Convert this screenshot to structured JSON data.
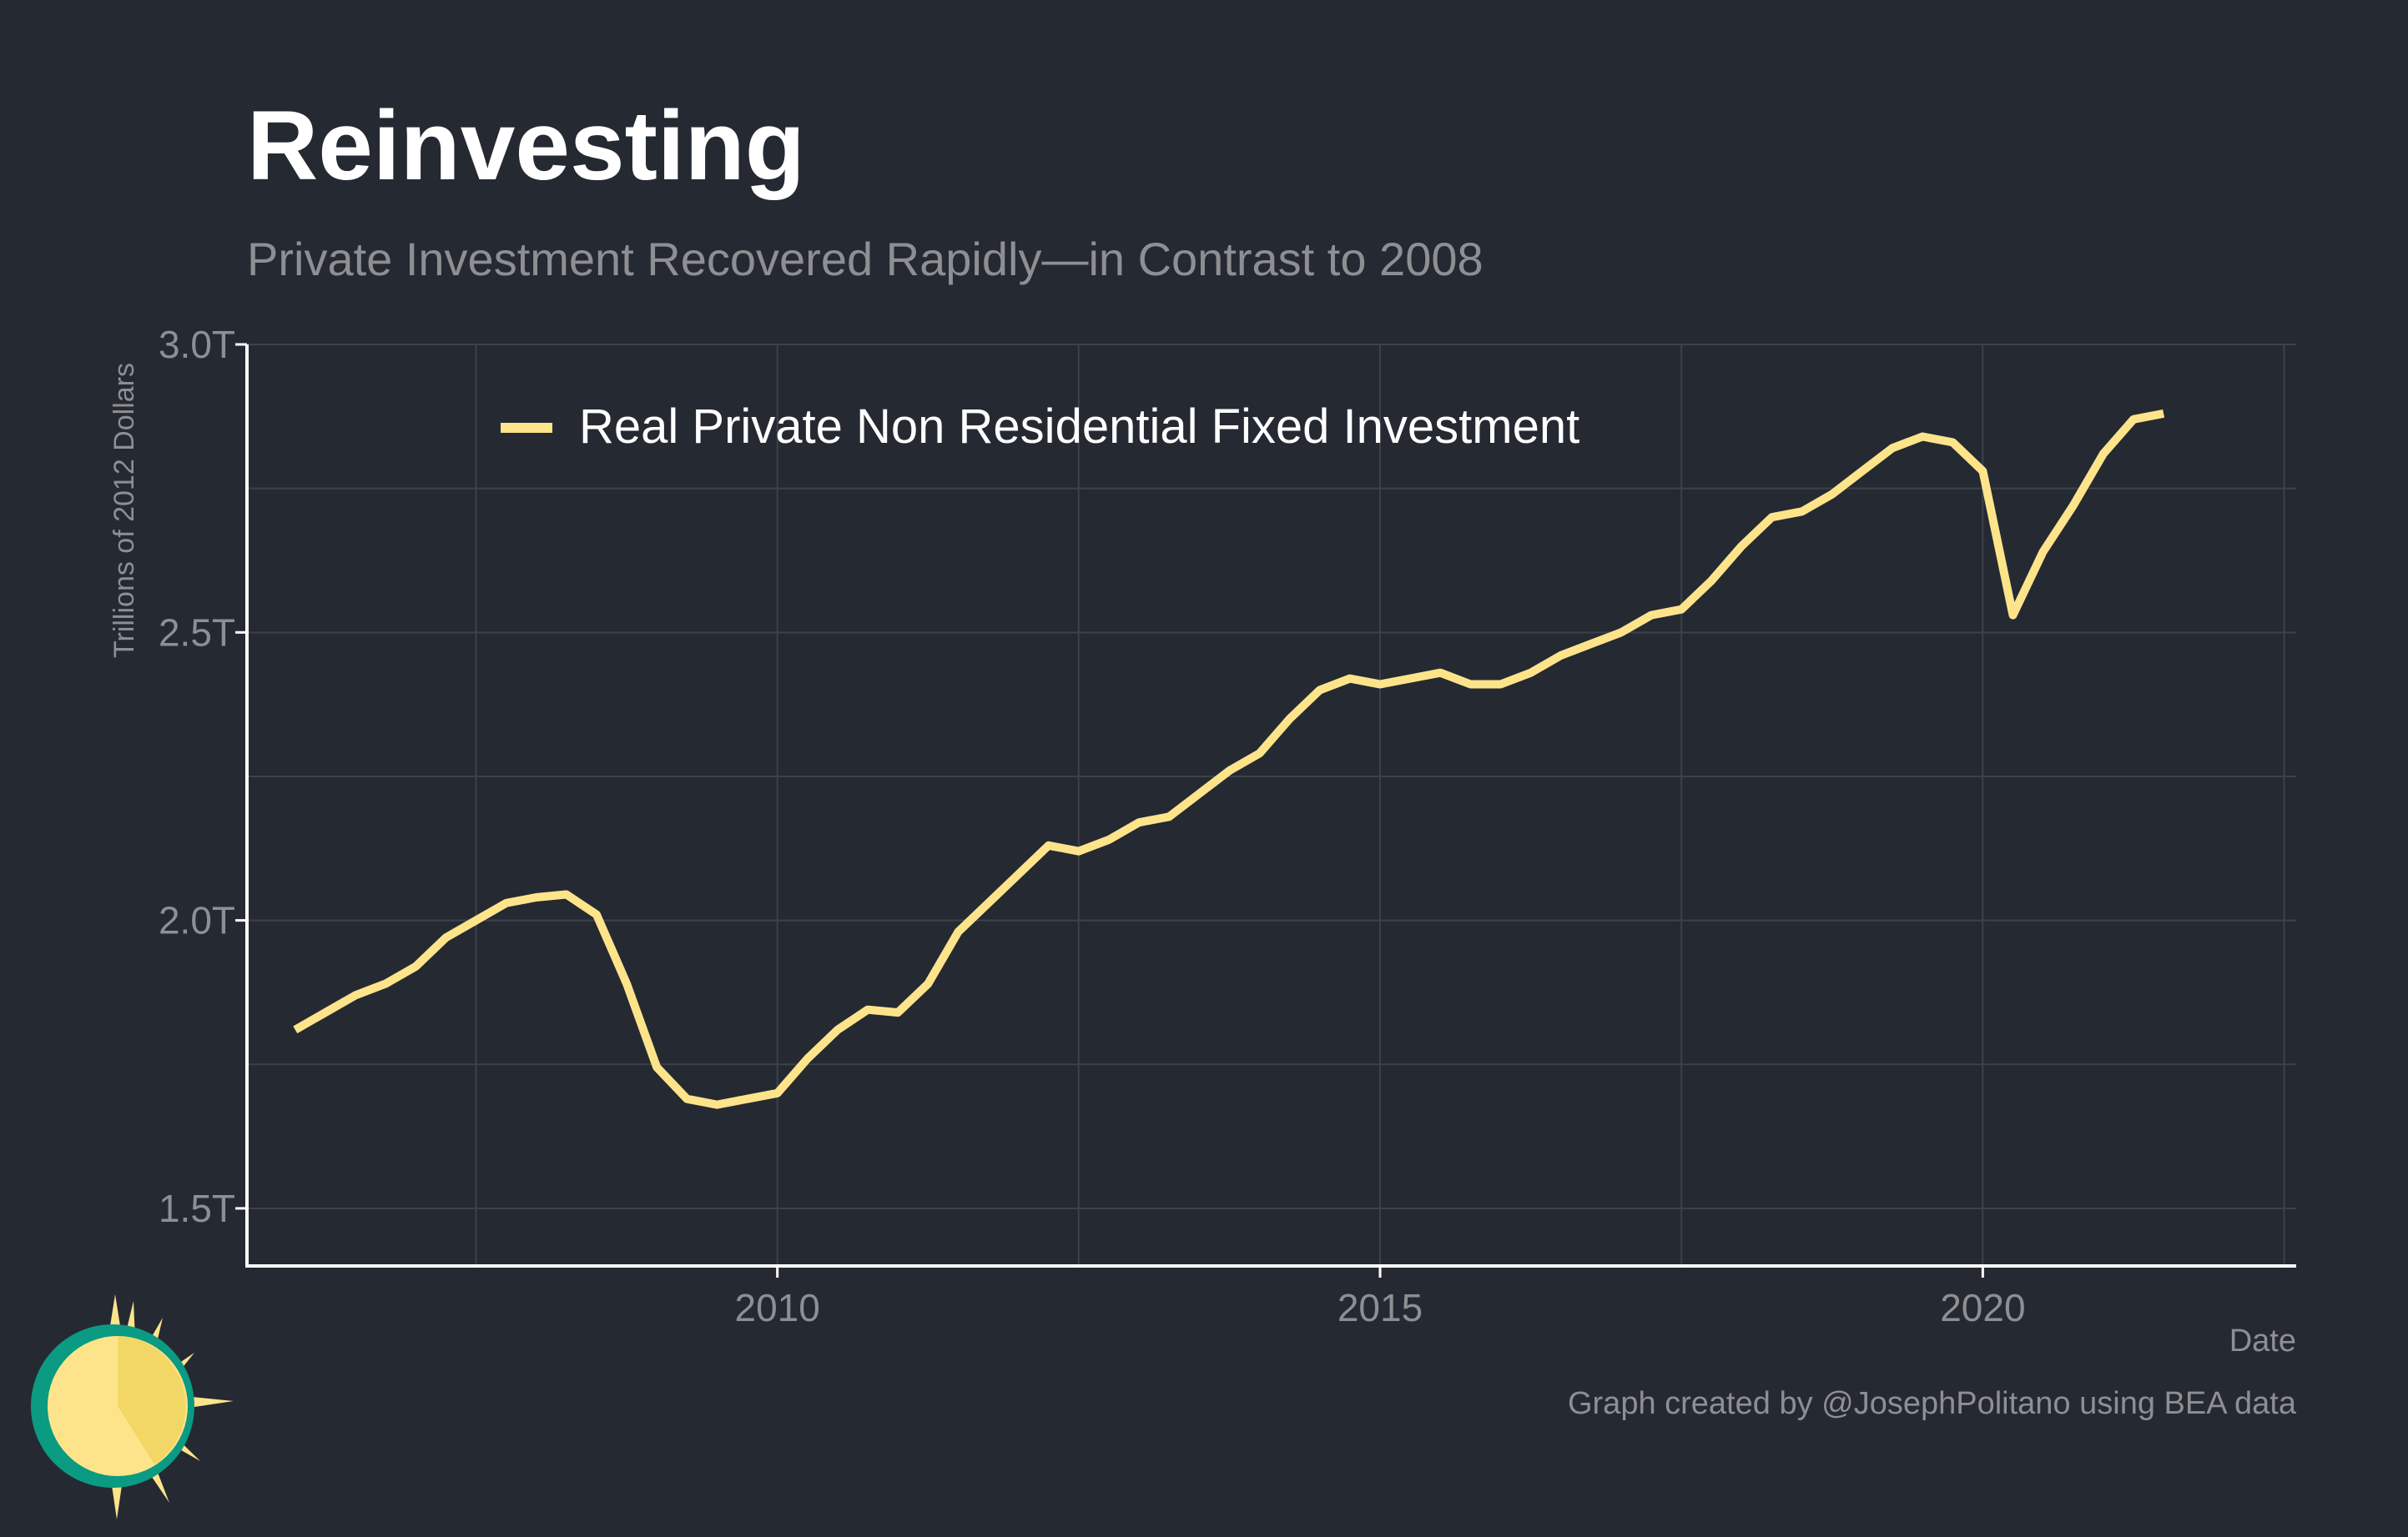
{
  "title": "Reinvesting",
  "subtitle": "Private Investment Recovered Rapidly—in Contrast to 2008",
  "caption": "Graph created by @JosephPolitano using BEA data",
  "colors": {
    "background": "#252932",
    "line": "#fde48a",
    "grid": "#3d414a",
    "axis": "#ffffff",
    "muted_text": "#8e8f92"
  },
  "chart_data": {
    "type": "line",
    "title": "Reinvesting",
    "subtitle": "Private Investment Recovered Rapidly—in Contrast to 2008",
    "xlabel": "Date",
    "ylabel": "Trillions of 2012 Dollars",
    "xlim": [
      2005.6,
      2022.6
    ],
    "ylim": [
      1.4,
      3.0
    ],
    "x_ticks": [
      2010,
      2015,
      2020
    ],
    "x_tick_labels": [
      "2010",
      "2015",
      "2020"
    ],
    "y_ticks": [
      1.5,
      2.0,
      2.5,
      3.0
    ],
    "y_tick_labels": [
      "1.5T",
      "2.0T",
      "2.5T",
      "3.0T"
    ],
    "grid": true,
    "legend_position": "top-left",
    "series": [
      {
        "name": "Real Private Non Residential Fixed Investment",
        "color": "#fde48a",
        "x": [
          2006.0,
          2006.25,
          2006.5,
          2006.75,
          2007.0,
          2007.25,
          2007.5,
          2007.75,
          2008.0,
          2008.25,
          2008.5,
          2008.75,
          2009.0,
          2009.25,
          2009.5,
          2009.75,
          2010.0,
          2010.25,
          2010.5,
          2010.75,
          2011.0,
          2011.25,
          2011.5,
          2011.75,
          2012.0,
          2012.25,
          2012.5,
          2012.75,
          2013.0,
          2013.25,
          2013.5,
          2013.75,
          2014.0,
          2014.25,
          2014.5,
          2014.75,
          2015.0,
          2015.25,
          2015.5,
          2015.75,
          2016.0,
          2016.25,
          2016.5,
          2016.75,
          2017.0,
          2017.25,
          2017.5,
          2017.75,
          2018.0,
          2018.25,
          2018.5,
          2018.75,
          2019.0,
          2019.25,
          2019.5,
          2019.75,
          2020.0,
          2020.25,
          2020.5,
          2020.75,
          2021.0,
          2021.25,
          2021.5
        ],
        "values": [
          1.81,
          1.84,
          1.87,
          1.89,
          1.92,
          1.97,
          2.0,
          2.03,
          2.04,
          2.045,
          2.01,
          1.89,
          1.745,
          1.69,
          1.68,
          1.69,
          1.7,
          1.76,
          1.81,
          1.845,
          1.84,
          1.89,
          1.98,
          2.03,
          2.08,
          2.13,
          2.12,
          2.14,
          2.17,
          2.18,
          2.22,
          2.26,
          2.29,
          2.35,
          2.4,
          2.42,
          2.41,
          2.42,
          2.43,
          2.41,
          2.41,
          2.43,
          2.46,
          2.48,
          2.5,
          2.53,
          2.54,
          2.59,
          2.65,
          2.7,
          2.71,
          2.74,
          2.78,
          2.82,
          2.84,
          2.83,
          2.78,
          2.53,
          2.64,
          2.72,
          2.81,
          2.87,
          2.88
        ]
      }
    ]
  }
}
